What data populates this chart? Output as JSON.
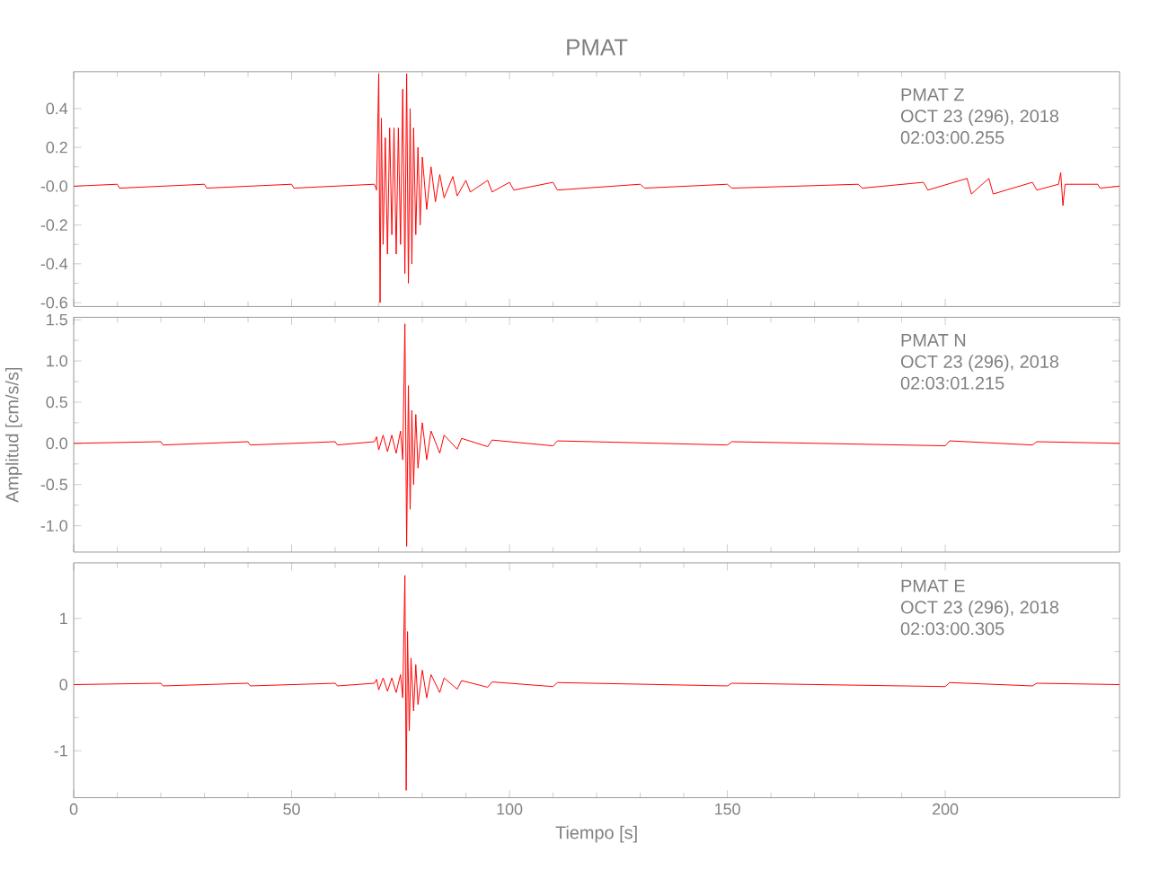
{
  "chart_data": [
    {
      "type": "line",
      "title": "PMAT",
      "color": "#ff0000",
      "tick_labels": "y",
      "xlim": [
        0,
        240
      ],
      "xticks": [
        0,
        50,
        100,
        150,
        200
      ],
      "ylim": [
        -0.62,
        0.59
      ],
      "yticks": [
        {
          "value": 0.4,
          "label": "0.4"
        },
        {
          "value": 0.2,
          "label": "0.2"
        },
        {
          "value": 0,
          "label": "-0.0"
        },
        {
          "value": -0.2,
          "label": "-0.2"
        },
        {
          "value": -0.4,
          "label": "-0.4"
        },
        {
          "value": -0.6,
          "label": "-0.6"
        }
      ],
      "annotations": [
        "PMAT   Z",
        "OCT 23 (296), 2018",
        "02:03:00.255"
      ],
      "x": [
        0,
        10,
        10.5,
        30,
        30.5,
        50,
        50.5,
        69,
        69.5,
        70,
        70.3,
        70.6,
        71,
        71.5,
        72,
        72.5,
        73,
        73.5,
        74,
        74.5,
        75,
        75.5,
        76,
        76.4,
        76.8,
        77.2,
        77.6,
        78,
        78.5,
        79,
        79.5,
        80,
        81,
        82,
        83,
        84,
        85,
        87,
        88,
        90,
        91,
        95,
        96,
        100,
        101,
        110,
        111,
        130,
        131,
        150,
        151,
        180,
        181,
        195,
        196,
        205,
        206,
        210,
        211,
        220,
        221,
        226,
        226.5,
        227,
        227.5,
        235,
        235.5,
        240
      ],
      "values": [
        0,
        0.01,
        -0.01,
        0.01,
        -0.01,
        0.01,
        -0.01,
        0.01,
        -0.02,
        0.58,
        -0.6,
        0.35,
        -0.3,
        0.25,
        -0.35,
        0.3,
        -0.25,
        0.3,
        -0.35,
        0.3,
        -0.3,
        0.5,
        -0.45,
        0.58,
        -0.5,
        0.4,
        -0.4,
        0.3,
        -0.25,
        0.2,
        -0.2,
        0.15,
        -0.12,
        0.1,
        -0.08,
        0.06,
        -0.06,
        0.05,
        -0.05,
        0.03,
        -0.03,
        0.03,
        -0.03,
        0.02,
        -0.02,
        0.02,
        -0.02,
        0.01,
        -0.01,
        0.01,
        -0.01,
        0.01,
        -0.01,
        0.02,
        -0.02,
        0.04,
        -0.04,
        0.04,
        -0.04,
        0.02,
        -0.02,
        0.01,
        0.07,
        -0.1,
        0.01,
        0.01,
        -0.01,
        0
      ]
    },
    {
      "type": "line",
      "ylabel": "Amplitud [cm/s/s]",
      "color": "#ff0000",
      "tick_labels": "y",
      "xlim": [
        0,
        240
      ],
      "xticks": [
        0,
        50,
        100,
        150,
        200
      ],
      "ylim": [
        -1.32,
        1.53
      ],
      "yticks": [
        {
          "value": 1.5,
          "label": "1.5"
        },
        {
          "value": 1,
          "label": "1.0"
        },
        {
          "value": 0.5,
          "label": "0.5"
        },
        {
          "value": 0,
          "label": "0.0"
        },
        {
          "value": -0.5,
          "label": "-0.5"
        },
        {
          "value": -1,
          "label": "-1.0"
        }
      ],
      "annotations": [
        "PMAT   N",
        "OCT 23 (296), 2018",
        "02:03:01.215"
      ],
      "x": [
        0,
        20,
        20.5,
        40,
        40.5,
        60,
        60.5,
        69,
        69.5,
        70,
        71,
        72,
        73,
        74,
        75,
        75.5,
        76,
        76.4,
        76.8,
        77.2,
        77.6,
        78,
        78.5,
        79,
        80,
        81,
        82,
        84,
        85,
        88,
        89,
        95,
        96,
        110,
        111,
        150,
        151,
        200,
        201,
        220,
        221,
        240
      ],
      "values": [
        0,
        0.02,
        -0.02,
        0.02,
        -0.02,
        0.02,
        -0.02,
        0.02,
        0.08,
        -0.08,
        0.1,
        -0.1,
        0.1,
        -0.12,
        0.15,
        -0.2,
        1.45,
        -1.25,
        0.7,
        -0.8,
        0.4,
        -0.5,
        0.35,
        -0.3,
        0.25,
        -0.2,
        0.15,
        -0.12,
        0.1,
        -0.07,
        0.06,
        -0.04,
        0.04,
        -0.03,
        0.03,
        -0.02,
        0.02,
        -0.03,
        0.03,
        -0.02,
        0.02,
        0
      ]
    },
    {
      "type": "line",
      "xlabel": "Tiempo [s]",
      "color": "#ff0000",
      "xlim": [
        0,
        240
      ],
      "xticks": [
        0,
        50,
        100,
        150,
        200
      ],
      "ylim": [
        -1.71,
        1.84
      ],
      "yticks": [
        1,
        0,
        -1
      ],
      "annotations": [
        "PMAT   E",
        "OCT 23 (296), 2018",
        "02:03:00.305"
      ],
      "x": [
        0,
        20,
        20.5,
        40,
        40.5,
        60,
        60.5,
        69,
        69.5,
        70,
        71,
        72,
        73,
        74,
        75,
        75.5,
        76,
        76.3,
        76.6,
        77,
        77.4,
        78,
        78.5,
        79,
        80,
        81,
        82,
        84,
        85,
        88,
        89,
        95,
        96,
        110,
        111,
        150,
        151,
        200,
        201,
        220,
        221,
        240
      ],
      "values": [
        0,
        0.02,
        -0.02,
        0.02,
        -0.02,
        0.02,
        -0.02,
        0.02,
        0.08,
        -0.08,
        0.1,
        -0.1,
        0.1,
        -0.12,
        0.15,
        -0.2,
        1.65,
        -1.6,
        0.8,
        -0.7,
        0.4,
        -0.4,
        0.3,
        -0.3,
        0.22,
        -0.2,
        0.15,
        -0.12,
        0.1,
        -0.07,
        0.06,
        -0.04,
        0.04,
        -0.03,
        0.03,
        -0.02,
        0.02,
        -0.03,
        0.03,
        -0.02,
        0.02,
        0
      ]
    }
  ]
}
